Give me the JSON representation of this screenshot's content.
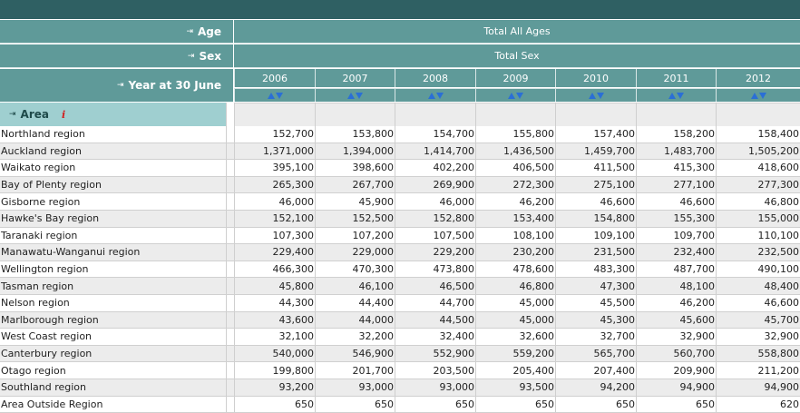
{
  "header": {
    "age_label": "Age",
    "age_value": "Total All Ages",
    "sex_label": "Sex",
    "sex_value": "Total Sex",
    "year_label": "Year at 30 June",
    "area_label": "Area",
    "pivot_icon": "pivot-arrow-icon",
    "info_icon": "info-icon",
    "sort_icon": "sort-up-down-icon"
  },
  "years": [
    "2006",
    "2007",
    "2008",
    "2009",
    "2010",
    "2011",
    "2012"
  ],
  "rows": [
    {
      "area": "Northland region",
      "values": [
        "152,700",
        "153,800",
        "154,700",
        "155,800",
        "157,400",
        "158,200",
        "158,400"
      ]
    },
    {
      "area": "Auckland region",
      "values": [
        "1,371,000",
        "1,394,000",
        "1,414,700",
        "1,436,500",
        "1,459,700",
        "1,483,700",
        "1,505,200"
      ]
    },
    {
      "area": "Waikato region",
      "values": [
        "395,100",
        "398,600",
        "402,200",
        "406,500",
        "411,500",
        "415,300",
        "418,600"
      ]
    },
    {
      "area": "Bay of Plenty region",
      "values": [
        "265,300",
        "267,700",
        "269,900",
        "272,300",
        "275,100",
        "277,100",
        "277,300"
      ]
    },
    {
      "area": "Gisborne region",
      "values": [
        "46,000",
        "45,900",
        "46,000",
        "46,200",
        "46,600",
        "46,600",
        "46,800"
      ]
    },
    {
      "area": "Hawke's Bay region",
      "values": [
        "152,100",
        "152,500",
        "152,800",
        "153,400",
        "154,800",
        "155,300",
        "155,000"
      ]
    },
    {
      "area": "Taranaki region",
      "values": [
        "107,300",
        "107,200",
        "107,500",
        "108,100",
        "109,100",
        "109,700",
        "110,100"
      ]
    },
    {
      "area": "Manawatu-Wanganui region",
      "values": [
        "229,400",
        "229,000",
        "229,200",
        "230,200",
        "231,500",
        "232,400",
        "232,500"
      ]
    },
    {
      "area": "Wellington region",
      "values": [
        "466,300",
        "470,300",
        "473,800",
        "478,600",
        "483,300",
        "487,700",
        "490,100"
      ]
    },
    {
      "area": "Tasman region",
      "values": [
        "45,800",
        "46,100",
        "46,500",
        "46,800",
        "47,300",
        "48,100",
        "48,400"
      ]
    },
    {
      "area": "Nelson region",
      "values": [
        "44,300",
        "44,400",
        "44,700",
        "45,000",
        "45,500",
        "46,200",
        "46,600"
      ]
    },
    {
      "area": "Marlborough region",
      "values": [
        "43,600",
        "44,000",
        "44,500",
        "45,000",
        "45,300",
        "45,600",
        "45,700"
      ]
    },
    {
      "area": "West Coast region",
      "values": [
        "32,100",
        "32,200",
        "32,400",
        "32,600",
        "32,700",
        "32,900",
        "32,900"
      ]
    },
    {
      "area": "Canterbury region",
      "values": [
        "540,000",
        "546,900",
        "552,900",
        "559,200",
        "565,700",
        "560,700",
        "558,800"
      ]
    },
    {
      "area": "Otago region",
      "values": [
        "199,800",
        "201,700",
        "203,500",
        "205,400",
        "207,400",
        "209,900",
        "211,200"
      ]
    },
    {
      "area": "Southland region",
      "values": [
        "93,200",
        "93,000",
        "93,000",
        "93,500",
        "94,200",
        "94,900",
        "94,900"
      ]
    },
    {
      "area": "Area Outside Region",
      "values": [
        "650",
        "650",
        "650",
        "650",
        "650",
        "650",
        "620"
      ]
    }
  ],
  "colors": {
    "header_bg": "#5f9a99",
    "topbar": "#2f6063",
    "area_bg": "#9fcfd0",
    "sort_arrow": "#2a6fd6",
    "info": "#d12020"
  }
}
